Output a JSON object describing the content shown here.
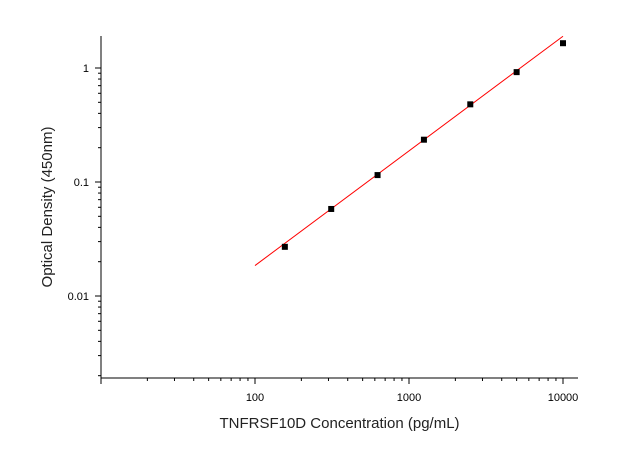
{
  "chart_data": {
    "type": "scatter",
    "title": "",
    "xlabel": "TNFRSF10D Concentration (pg/mL)",
    "ylabel": "Optical Density (450nm)",
    "xscale": "log",
    "yscale": "log",
    "xlim": [
      10,
      10000
    ],
    "ylim": [
      0.001,
      2
    ],
    "x_tick_labels": [
      "100",
      "1000",
      "10000"
    ],
    "y_tick_labels": [
      "0.01",
      "0.1",
      "1"
    ],
    "grid": false,
    "legend": "none",
    "series": [
      {
        "type": "scatter",
        "marker": "square",
        "color": "#000000",
        "points": [
          {
            "x": 156.25,
            "y": 0.027
          },
          {
            "x": 312.5,
            "y": 0.058
          },
          {
            "x": 625,
            "y": 0.115
          },
          {
            "x": 1250,
            "y": 0.235
          },
          {
            "x": 2500,
            "y": 0.48
          },
          {
            "x": 5000,
            "y": 0.92
          },
          {
            "x": 10000,
            "y": 1.65
          }
        ]
      },
      {
        "type": "line",
        "color": "#ff0000",
        "points": [
          {
            "x": 100,
            "y": 0.0185
          },
          {
            "x": 10000,
            "y": 1.9
          }
        ]
      }
    ]
  }
}
